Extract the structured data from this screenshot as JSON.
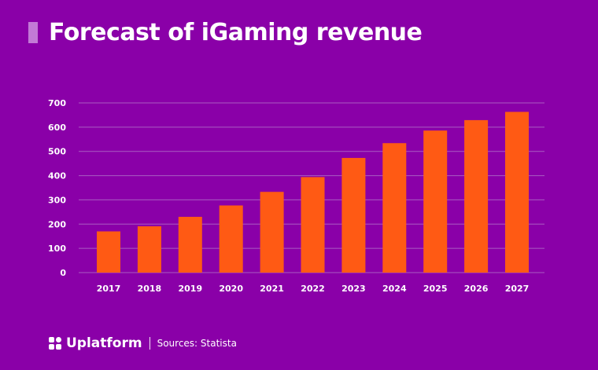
{
  "title": "Forecast of iGaming revenue",
  "footer": {
    "brand": "Uplatform",
    "source": "Sources: Statista"
  },
  "colors": {
    "background": "#8a00a8",
    "bar": "#ff5a14",
    "text": "#ffffff",
    "grid": "#a95cc2"
  },
  "chart_data": {
    "type": "bar",
    "categories": [
      "2017",
      "2018",
      "2019",
      "2020",
      "2021",
      "2022",
      "2023",
      "2024",
      "2025",
      "2026",
      "2027"
    ],
    "values": [
      170,
      191,
      230,
      277,
      333,
      394,
      473,
      534,
      586,
      629,
      663
    ],
    "ylim": [
      0,
      700
    ],
    "yticks": [
      0,
      100,
      200,
      300,
      400,
      500,
      600,
      700
    ],
    "grid": true
  }
}
